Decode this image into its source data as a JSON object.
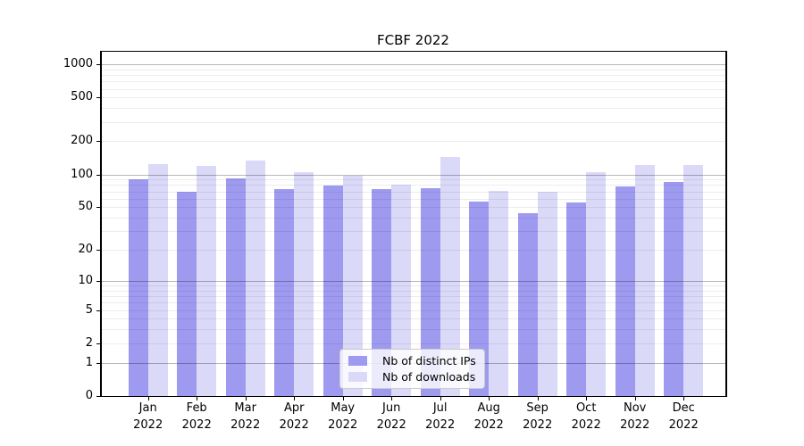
{
  "title": "FCBF 2022",
  "chart_data": {
    "type": "bar",
    "title": "FCBF 2022",
    "categories": [
      "Jan",
      "Feb",
      "Mar",
      "Apr",
      "May",
      "Jun",
      "Jul",
      "Aug",
      "Sep",
      "Oct",
      "Nov",
      "Dec"
    ],
    "year_label": "2022",
    "series": [
      {
        "name": "Nb of distinct IPs",
        "color": "#9e9af0",
        "values": [
          91,
          70,
          92,
          74,
          79,
          73,
          75,
          56,
          44,
          55,
          77,
          85
        ]
      },
      {
        "name": "Nb of downloads",
        "color": "#dbd9f8",
        "values": [
          125,
          119,
          133,
          105,
          98,
          81,
          143,
          71,
          69,
          105,
          121,
          123
        ]
      }
    ],
    "xlabel": "",
    "ylabel": "",
    "y_scale": "log1p",
    "y_ticks": [
      0,
      1,
      2,
      5,
      10,
      20,
      50,
      100,
      200,
      500,
      1000
    ],
    "ylim": [
      0,
      1300
    ],
    "grid": "horizontal, minor + major (at powers of 10)",
    "legend_position": "lower center",
    "colors": {
      "grid_minor": "rgba(0,0,0,0.075)",
      "grid_major": "rgba(0,0,0,0.28)",
      "axis": "#000000",
      "background": "#ffffff"
    }
  }
}
